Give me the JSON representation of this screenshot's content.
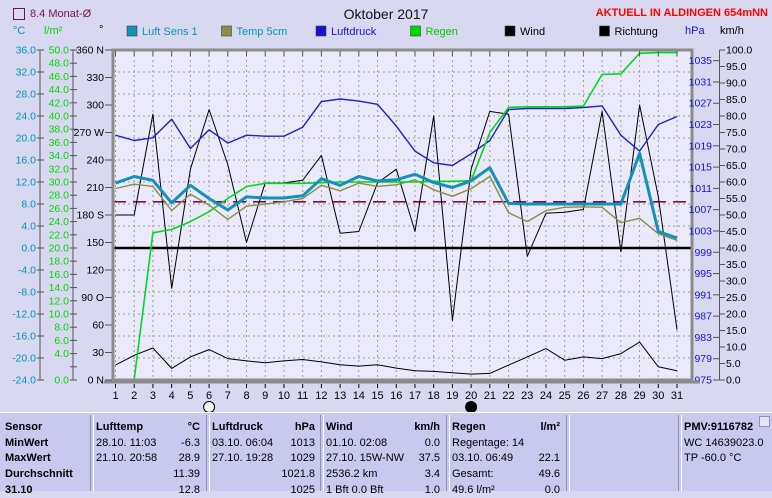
{
  "header": {
    "average_label": "8.4 Monat-Ø",
    "title": "Oktober 2017",
    "status": "AKTUELL IN ALDINGEN 654mNN"
  },
  "chart_data": {
    "type": "line",
    "title": "Oktober 2017",
    "x_days": [
      1,
      2,
      3,
      4,
      5,
      6,
      7,
      8,
      9,
      10,
      11,
      12,
      13,
      14,
      15,
      16,
      17,
      18,
      19,
      20,
      21,
      22,
      23,
      24,
      25,
      26,
      27,
      28,
      29,
      30,
      31
    ],
    "grid": true,
    "axes": [
      {
        "id": "temp",
        "unit": "°C",
        "color": "#0092bc",
        "min": -24,
        "max": 36,
        "tick_start": 36,
        "tick_step": 4,
        "tick_labels": [
          "36.0",
          "32.0",
          "28.0",
          "24.0",
          "20.0",
          "16.0",
          "12.0",
          "8.0",
          "4.0",
          "0.0",
          "-4.0",
          "-8.0",
          "-12.0",
          "-16.0",
          "-20.0",
          "-24.0"
        ]
      },
      {
        "id": "rain",
        "unit": "l/m²",
        "color": "#00d800",
        "min": 0,
        "max": 50,
        "tick_start": 50,
        "tick_step": 2,
        "tick_labels": [
          "50.0",
          "48.0",
          "46.0",
          "44.0",
          "42.0",
          "40.0",
          "38.0",
          "36.0",
          "34.0",
          "32.0",
          "30.0",
          "28.0",
          "26.0",
          "24.0",
          "22.0",
          "20.0",
          "18.0",
          "16.0",
          "14.0",
          "12.0",
          "10.0",
          "8.0",
          "6.0",
          "4.0",
          "",
          "0.0"
        ]
      },
      {
        "id": "dir",
        "unit": "°",
        "color": "#000000",
        "min": 0,
        "max": 360,
        "tick_start": 360,
        "tick_step": 30,
        "tick_labels": [
          "360 N",
          "330",
          "300",
          "270 W",
          "240",
          "210",
          "180 S",
          "150",
          "120",
          "90 O",
          "60",
          "30",
          "0 N"
        ]
      },
      {
        "id": "hpa",
        "unit": "hPa",
        "color": "#1414d2",
        "min": 975,
        "max": 1037,
        "tick_start": 1035,
        "tick_step": 4,
        "tick_labels": [
          "1035",
          "1031",
          "1027",
          "1023",
          "1019",
          "1015",
          "1011",
          "1007",
          "1003",
          "999",
          "995",
          "991",
          "987",
          "983",
          "979",
          "975"
        ]
      },
      {
        "id": "kmh",
        "unit": "km/h",
        "color": "#000000",
        "min": 0,
        "max": 100,
        "tick_start": 100,
        "tick_step": 5,
        "tick_labels": [
          "100.0",
          "95.0",
          "90.0",
          "85.0",
          "80.0",
          "75.0",
          "70.0",
          "65.0",
          "60.0",
          "55.0",
          "50.0",
          "45.0",
          "40.0",
          "35.0",
          "30.0",
          "25.0",
          "20.0",
          "15.0",
          "10.0",
          "5.0",
          "0.0"
        ]
      }
    ],
    "series": [
      {
        "id": "wind",
        "name": "Wind",
        "axis": "kmh",
        "color": "#000000",
        "width": 1,
        "values": [
          4.5,
          7.5,
          9.7,
          3.5,
          7.0,
          9.2,
          6.5,
          5.8,
          5.2,
          5.8,
          6.2,
          5.5,
          4.6,
          4.2,
          4.6,
          3.6,
          2.8,
          2.6,
          2.2,
          1.8,
          2.0,
          4.5,
          7.0,
          9.5,
          6.0,
          7.0,
          6.5,
          8.0,
          11.5,
          4.0,
          2.8
        ]
      },
      {
        "id": "richtung",
        "name": "Richtung",
        "axis": "dir",
        "color": "#000000",
        "width": 1,
        "values": [
          180,
          180,
          290,
          100,
          230,
          295,
          235,
          150,
          215,
          215,
          218,
          245,
          160,
          162,
          215,
          230,
          162,
          288,
          65,
          230,
          293,
          290,
          135,
          182,
          183,
          186,
          293,
          140,
          300,
          200,
          55
        ]
      },
      {
        "id": "luftdruck",
        "name": "Luftdruck",
        "axis": "hpa",
        "color": "#2020cc",
        "width": 1.4,
        "values": [
          1021,
          1020,
          1020.5,
          1024,
          1018.5,
          1022,
          1019.5,
          1021,
          1020.8,
          1020.8,
          1022.5,
          1027.3,
          1027.8,
          1027.4,
          1026.8,
          1022.7,
          1018,
          1015.8,
          1015.3,
          1017.5,
          1020,
          1025.8,
          1026,
          1026,
          1026,
          1026.2,
          1026.5,
          1021,
          1018,
          1023,
          1024.5
        ]
      },
      {
        "id": "temp-5cm",
        "name": "Temp 5cm",
        "axis": "temp",
        "color": "#8c8c46",
        "width": 1.4,
        "values": [
          10.8,
          11.6,
          11.2,
          6.8,
          9.8,
          7.8,
          5.2,
          7.6,
          8.0,
          8.4,
          9.0,
          11.4,
          10.4,
          11.8,
          11.2,
          11.5,
          12.4,
          10.6,
          9.4,
          10.8,
          13.0,
          6.4,
          4.8,
          6.8,
          7.4,
          7.5,
          7.4,
          4.6,
          5.4,
          2.6,
          1.4
        ]
      },
      {
        "id": "regen",
        "name": "Regen",
        "axis": "rain",
        "color": "#00d81c",
        "width": 1.6,
        "values": [
          0,
          0.1,
          22.3,
          22.8,
          24.0,
          25.5,
          27.5,
          29.3,
          29.8,
          29.8,
          29.8,
          29.9,
          30.0,
          30.0,
          30.0,
          30.0,
          30.0,
          30.1,
          30.1,
          30.2,
          37.5,
          41.3,
          41.4,
          41.4,
          41.4,
          41.5,
          46.3,
          46.4,
          49.5,
          49.6,
          49.6
        ]
      },
      {
        "id": "luft-sens-1",
        "name": "Luft Sens 1",
        "axis": "temp",
        "color": "#1590b8",
        "width": 3,
        "values": [
          11.8,
          13.0,
          12.3,
          8.2,
          11.4,
          9.0,
          6.9,
          9.3,
          9.1,
          9.1,
          9.5,
          12.6,
          11.4,
          13.0,
          12.2,
          12.4,
          13.4,
          11.9,
          11.0,
          12.2,
          14.6,
          8.1,
          8.0,
          8.0,
          8.0,
          8.0,
          8.0,
          8.0,
          17.2,
          3.0,
          1.8
        ]
      }
    ],
    "legend": [
      {
        "label": "Luft Sens 1",
        "square_color": "#1590b8",
        "label_color": "#0096be"
      },
      {
        "label": "Temp 5cm",
        "square_color": "#8c8c46",
        "label_color": "#0096be"
      },
      {
        "label": "Luftdruck",
        "square_color": "#1414d2",
        "label_color": "#1414d2"
      },
      {
        "label": "Regen",
        "square_color": "#00d800",
        "label_color": "#00c800"
      },
      {
        "label": "Wind",
        "square_color": "#000000",
        "label_color": "#000000"
      },
      {
        "label": "Richtung",
        "square_color": "#000000",
        "label_color": "#000000"
      }
    ],
    "reference_lines": [
      {
        "axis": "temp",
        "value": 8.4,
        "style": "dashed",
        "color": "#7a1050",
        "width": 1.6,
        "label": "8.4 Monat-Ø"
      },
      {
        "axis": "temp",
        "value": 0,
        "style": "solid",
        "color": "#000000",
        "width": 2.4,
        "label": "0 °C"
      }
    ],
    "moon_markers": [
      {
        "day": 6,
        "type": "open"
      },
      {
        "day": 20,
        "type": "filled"
      }
    ]
  },
  "table": {
    "rows": [
      {
        "id": "header",
        "header": true,
        "label": "Sensor",
        "groups": [
          {
            "l": "Lufttemp",
            "r": "°C"
          },
          {
            "l": "Luftdruck",
            "r": "hPa"
          },
          {
            "l": "Wind",
            "r": "km/h"
          },
          {
            "l": "Regen",
            "r": "l/m²"
          },
          {
            "l": "",
            "r": ""
          },
          {
            "l": "PMV:9116782",
            "r": ""
          }
        ]
      },
      {
        "id": "minwert",
        "header": false,
        "label": "MinWert",
        "groups": [
          {
            "l": "28.10.  11:03",
            "r": "-6.3"
          },
          {
            "l": "03.10.  06:04",
            "r": "1013"
          },
          {
            "l": "01.10.  02:08",
            "r": "0.0"
          },
          {
            "l": "Regentage: 14",
            "r": ""
          },
          {
            "l": "",
            "r": ""
          },
          {
            "l": "WC 14639023.0",
            "r": ""
          }
        ]
      },
      {
        "id": "maxwert",
        "header": false,
        "label": "MaxWert",
        "groups": [
          {
            "l": "21.10.  20:58",
            "r": "28.9"
          },
          {
            "l": "27.10.  19:28",
            "r": "1029"
          },
          {
            "l": "27.10.  15W-NW",
            "r": "37.5"
          },
          {
            "l": "03.10.  06:49",
            "r": "22.1"
          },
          {
            "l": "",
            "r": ""
          },
          {
            "l": "TP -60.0 °C",
            "r": ""
          }
        ]
      },
      {
        "id": "durchschnitt",
        "header": false,
        "label": "Durchschnitt",
        "groups": [
          {
            "l": "",
            "r": "11.39"
          },
          {
            "l": "",
            "r": "1021.8"
          },
          {
            "l": "2536.2 km",
            "r": "3.4"
          },
          {
            "l": "Gesamt:",
            "r": "49.6"
          },
          {
            "l": "",
            "r": ""
          },
          {
            "l": "",
            "r": ""
          }
        ]
      },
      {
        "id": "aktuell",
        "header": false,
        "label": "31.10",
        "groups": [
          {
            "l": "",
            "r": "12.8"
          },
          {
            "l": "",
            "r": "1025"
          },
          {
            "l": "1 Bft  0.0 Bft",
            "r": "1.0"
          },
          {
            "l": "49.6 l/m²",
            "r": "0.0"
          },
          {
            "l": "",
            "r": ""
          },
          {
            "l": "",
            "r": ""
          }
        ]
      }
    ]
  }
}
